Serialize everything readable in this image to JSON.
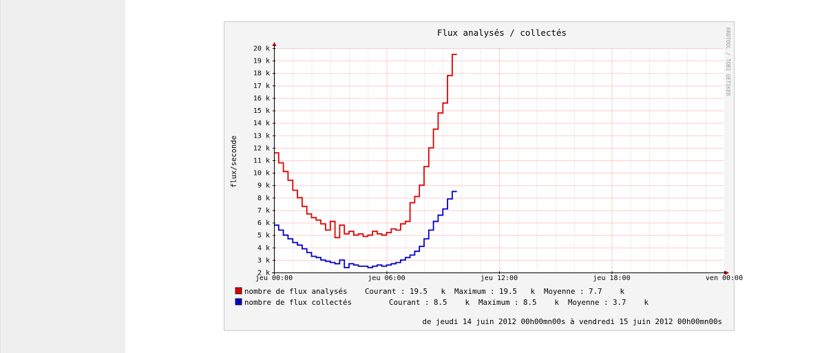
{
  "chart_data": {
    "type": "line",
    "title": "Flux analysés / collectés",
    "ylabel": "flux/seconde",
    "watermark": "RRDTOOL / TOBI OETIKER",
    "ylim": [
      2,
      20
    ],
    "y_ticks": [
      {
        "value": 2,
        "label": "2 k"
      },
      {
        "value": 3,
        "label": "3 k"
      },
      {
        "value": 4,
        "label": "4 k"
      },
      {
        "value": 5,
        "label": "5 k"
      },
      {
        "value": 6,
        "label": "6 k"
      },
      {
        "value": 7,
        "label": "7 k"
      },
      {
        "value": 8,
        "label": "8 k"
      },
      {
        "value": 9,
        "label": "9 k"
      },
      {
        "value": 10,
        "label": "10 k"
      },
      {
        "value": 11,
        "label": "11 k"
      },
      {
        "value": 12,
        "label": "12 k"
      },
      {
        "value": 13,
        "label": "13 k"
      },
      {
        "value": 14,
        "label": "14 k"
      },
      {
        "value": 15,
        "label": "15 k"
      },
      {
        "value": 16,
        "label": "16 k"
      },
      {
        "value": 17,
        "label": "17 k"
      },
      {
        "value": 18,
        "label": "18 k"
      },
      {
        "value": 19,
        "label": "19 k"
      },
      {
        "value": 20,
        "label": "20 k"
      }
    ],
    "xlim": [
      0,
      24
    ],
    "x_ticks": [
      {
        "value": 0,
        "label": "jeu 00:00"
      },
      {
        "value": 6,
        "label": "jeu 06:00"
      },
      {
        "value": 12,
        "label": "jeu 12:00"
      },
      {
        "value": 18,
        "label": "jeu 18:00"
      },
      {
        "value": 24,
        "label": "ven 00:00"
      }
    ],
    "grid": true,
    "series": [
      {
        "name": "nombre de flux analysés",
        "color": "#dd0000",
        "legend_stats": "Courant : 19.5   k  Maximum : 19.5   k  Moyenne : 7.7    k",
        "x": [
          0,
          0.25,
          0.5,
          0.75,
          1,
          1.25,
          1.5,
          1.75,
          2,
          2.25,
          2.5,
          2.75,
          3,
          3.25,
          3.5,
          3.75,
          4,
          4.25,
          4.5,
          4.75,
          5,
          5.25,
          5.5,
          5.75,
          6,
          6.25,
          6.5,
          6.75,
          7,
          7.25,
          7.5,
          7.75,
          8,
          8.25,
          8.5,
          8.75,
          9,
          9.25,
          9.5
        ],
        "values": [
          11.6,
          10.8,
          10.1,
          9.4,
          8.6,
          8.0,
          7.3,
          6.7,
          6.4,
          6.2,
          5.9,
          5.4,
          6.1,
          4.8,
          5.8,
          5.1,
          5.3,
          5.0,
          5.1,
          4.9,
          5.0,
          5.3,
          5.1,
          5.0,
          5.2,
          5.5,
          5.4,
          5.9,
          6.1,
          7.6,
          8.1,
          9.0,
          10.5,
          12.0,
          13.5,
          14.8,
          15.6,
          17.8,
          19.5
        ]
      },
      {
        "name": "nombre de flux collectés",
        "color": "#0000cc",
        "legend_stats": "Courant : 8.5    k  Maximum : 8.5    k  Moyenne : 3.7    k",
        "x": [
          0,
          0.25,
          0.5,
          0.75,
          1,
          1.25,
          1.5,
          1.75,
          2,
          2.25,
          2.5,
          2.75,
          3,
          3.25,
          3.5,
          3.75,
          4,
          4.25,
          4.5,
          4.75,
          5,
          5.25,
          5.5,
          5.75,
          6,
          6.25,
          6.5,
          6.75,
          7,
          7.25,
          7.5,
          7.75,
          8,
          8.25,
          8.5,
          8.75,
          9,
          9.25,
          9.5
        ],
        "values": [
          5.8,
          5.4,
          5.0,
          4.7,
          4.4,
          4.2,
          3.9,
          3.6,
          3.3,
          3.2,
          3.0,
          2.9,
          2.8,
          2.7,
          3.0,
          2.4,
          2.7,
          2.6,
          2.5,
          2.5,
          2.4,
          2.5,
          2.6,
          2.5,
          2.6,
          2.7,
          2.8,
          3.0,
          3.2,
          3.4,
          3.7,
          4.1,
          4.7,
          5.4,
          6.1,
          6.6,
          7.1,
          7.9,
          8.5
        ]
      }
    ],
    "footer": "de jeudi 14 juin 2012 00h00mn00s à vendredi 15 juin 2012 00h00mn00s"
  }
}
